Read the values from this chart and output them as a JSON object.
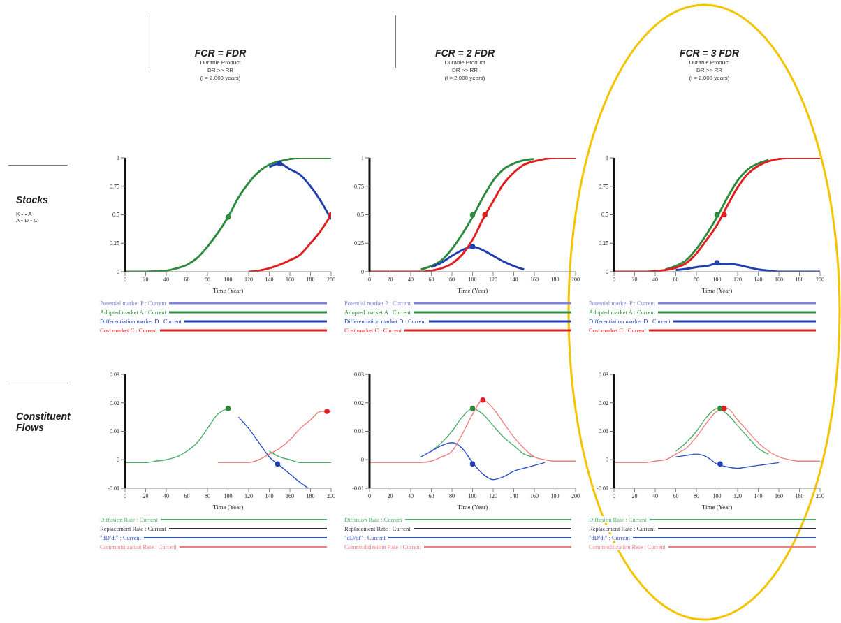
{
  "chart_data": [
    {
      "type": "line",
      "title": "FCR = FDR",
      "subtitle": "Durable Product\nDR >> RR\n(l = 2,000 years)",
      "xlabel": "Time (Year)",
      "annotations": [
        "Stocks",
        "K •    • A",
        "A • D • C"
      ],
      "x": [
        0,
        10,
        20,
        30,
        40,
        50,
        60,
        70,
        80,
        90,
        100,
        110,
        120,
        130,
        140,
        150,
        160,
        170,
        180,
        190,
        200
      ],
      "xlim": [
        0,
        200
      ],
      "xticks": [
        0,
        20,
        40,
        60,
        80,
        100,
        120,
        140,
        160,
        180,
        200
      ],
      "ylim": [
        0,
        1
      ],
      "yticks": [
        0,
        0.25,
        0.5,
        0.75,
        1
      ],
      "grid": false,
      "legend": "bottom",
      "series": [
        {
          "name": "Potential market P : Current",
          "color": "#8080e0",
          "values": [
            null,
            null,
            null,
            null,
            null,
            null,
            null,
            null,
            null,
            null,
            null,
            null,
            null,
            null,
            null,
            null,
            null,
            null,
            null,
            null,
            null
          ]
        },
        {
          "name": "Adopted market A : Current",
          "color": "#2e8b3e",
          "values": [
            0,
            0,
            0,
            0.005,
            0.01,
            0.03,
            0.06,
            0.12,
            0.22,
            0.34,
            0.48,
            0.65,
            0.78,
            0.88,
            0.94,
            0.97,
            0.99,
            1,
            1,
            1,
            1
          ]
        },
        {
          "name": "Differentiation market D : Current",
          "color": "#2040b0",
          "x": [
            140,
            150,
            160,
            170,
            180,
            190,
            200
          ],
          "values": [
            0.92,
            0.95,
            0.9,
            0.85,
            0.75,
            0.62,
            0.46
          ]
        },
        {
          "name": "Cost market C : Current",
          "color": "#e02020",
          "values": [
            null,
            null,
            null,
            null,
            null,
            null,
            null,
            null,
            null,
            null,
            null,
            null,
            0,
            0.01,
            0.03,
            0.06,
            0.1,
            0.15,
            0.25,
            0.36,
            0.5
          ]
        },
        {
          "type": "scatter",
          "color": "#2e8b3e",
          "x": [
            100
          ],
          "values": [
            0.48
          ]
        },
        {
          "type": "scatter",
          "color": "#2040b0",
          "x": [
            150
          ],
          "values": [
            0.95
          ]
        },
        {
          "type": "scatter",
          "color": "#e02020",
          "x": [
            200
          ],
          "values": [
            0.5
          ]
        }
      ]
    },
    {
      "type": "line",
      "title": "FCR = 2 FDR",
      "subtitle": "Durable Product\nDR >> RR\n(l = 2,000 years)",
      "xlabel": "Time (Year)",
      "x": [
        0,
        10,
        20,
        30,
        40,
        50,
        60,
        70,
        80,
        90,
        100,
        110,
        120,
        130,
        140,
        150,
        160,
        170,
        180,
        190,
        200
      ],
      "xlim": [
        0,
        200
      ],
      "xticks": [
        0,
        20,
        40,
        60,
        80,
        100,
        120,
        140,
        160,
        180,
        200
      ],
      "ylim": [
        0,
        1
      ],
      "yticks": [
        0,
        0.25,
        0.5,
        0.75,
        1
      ],
      "grid": false,
      "legend": "bottom",
      "series": [
        {
          "name": "Potential market P : Current",
          "color": "#8080e0",
          "values": [
            null,
            null,
            null,
            null,
            null,
            null,
            null,
            null,
            null,
            null,
            null,
            null,
            null,
            null,
            null,
            null,
            null,
            null,
            null,
            null,
            null
          ]
        },
        {
          "name": "Adopted market A : Current",
          "color": "#2e8b3e",
          "values": [
            null,
            null,
            null,
            null,
            null,
            0.02,
            0.05,
            0.1,
            0.2,
            0.33,
            0.48,
            0.65,
            0.8,
            0.9,
            0.95,
            0.98,
            0.99,
            null,
            null,
            null,
            null
          ]
        },
        {
          "name": "Differentiation market D : Current",
          "color": "#2040b0",
          "values": [
            null,
            null,
            null,
            null,
            null,
            null,
            0.04,
            0.08,
            0.14,
            0.19,
            0.22,
            0.19,
            0.14,
            0.09,
            0.05,
            0.02,
            null,
            null,
            null,
            null,
            null
          ]
        },
        {
          "name": "Cost market C : Current",
          "color": "#e02020",
          "values": [
            0,
            0,
            0,
            0,
            0,
            0,
            0.01,
            0.03,
            0.07,
            0.15,
            0.28,
            0.46,
            0.62,
            0.77,
            0.87,
            0.94,
            0.97,
            0.99,
            1,
            1,
            1
          ]
        },
        {
          "type": "scatter",
          "color": "#2e8b3e",
          "x": [
            100
          ],
          "values": [
            0.5
          ]
        },
        {
          "type": "scatter",
          "color": "#e02020",
          "x": [
            112
          ],
          "values": [
            0.5
          ]
        },
        {
          "type": "scatter",
          "color": "#2040b0",
          "x": [
            100
          ],
          "values": [
            0.22
          ]
        }
      ]
    },
    {
      "type": "line",
      "title": "FCR = 3 FDR",
      "subtitle": "Durable Product\nDR >> RR\n(l = 2,000 years)",
      "xlabel": "Time (Year)",
      "x": [
        0,
        10,
        20,
        30,
        40,
        50,
        60,
        70,
        80,
        90,
        100,
        110,
        120,
        130,
        140,
        150,
        160,
        170,
        180,
        190,
        200
      ],
      "xlim": [
        0,
        200
      ],
      "xticks": [
        0,
        20,
        40,
        60,
        80,
        100,
        120,
        140,
        160,
        180,
        200
      ],
      "ylim": [
        0,
        1
      ],
      "yticks": [
        0,
        0.25,
        0.5,
        0.75,
        1
      ],
      "grid": false,
      "legend": "bottom",
      "series": [
        {
          "name": "Potential market P : Current",
          "color": "#8080e0",
          "values": [
            null,
            null,
            null,
            null,
            null,
            null,
            null,
            null,
            null,
            null,
            null,
            null,
            null,
            null,
            null,
            null,
            null,
            null,
            null,
            null,
            null
          ]
        },
        {
          "name": "Adopted market A : Current",
          "color": "#2e8b3e",
          "values": [
            null,
            null,
            null,
            null,
            null,
            0.02,
            0.05,
            0.1,
            0.2,
            0.33,
            0.48,
            0.65,
            0.8,
            0.9,
            0.95,
            0.98,
            null,
            null,
            null,
            null,
            null
          ]
        },
        {
          "name": "Differentiation market D : Current",
          "color": "#2040b0",
          "values": [
            null,
            null,
            null,
            null,
            null,
            null,
            0.015,
            0.025,
            0.04,
            0.05,
            0.07,
            0.07,
            0.06,
            0.04,
            0.02,
            0.01,
            0,
            0,
            0,
            0,
            0
          ]
        },
        {
          "name": "Cost market C : Current",
          "color": "#e02020",
          "values": [
            0,
            0,
            0,
            0,
            0.005,
            0.015,
            0.035,
            0.075,
            0.16,
            0.28,
            0.41,
            0.58,
            0.74,
            0.86,
            0.93,
            0.97,
            0.99,
            1,
            1,
            1,
            1
          ]
        },
        {
          "type": "scatter",
          "color": "#2e8b3e",
          "x": [
            100
          ],
          "values": [
            0.5
          ]
        },
        {
          "type": "scatter",
          "color": "#e02020",
          "x": [
            107
          ],
          "values": [
            0.5
          ]
        },
        {
          "type": "scatter",
          "color": "#2040b0",
          "x": [
            100
          ],
          "values": [
            0.08
          ]
        }
      ]
    },
    {
      "type": "line",
      "xlabel": "Time (Year)",
      "annotations": [
        "Constituent Flows"
      ],
      "x": [
        0,
        10,
        20,
        30,
        40,
        50,
        60,
        70,
        80,
        90,
        100,
        110,
        120,
        130,
        140,
        150,
        160,
        170,
        180,
        190,
        200
      ],
      "xlim": [
        0,
        200
      ],
      "xticks": [
        0,
        20,
        40,
        60,
        80,
        100,
        120,
        140,
        160,
        180,
        200
      ],
      "ylim": [
        -0.01,
        0.03
      ],
      "yticks": [
        -0.01,
        0,
        0.01,
        0.02,
        0.03
      ],
      "grid": false,
      "legend": "bottom",
      "series": [
        {
          "name": "Diffusion Rate : Current",
          "color": "#4caf6a",
          "values": [
            -0.001,
            -0.001,
            -0.001,
            -0.0005,
            0,
            0.001,
            0.003,
            0.006,
            0.011,
            0.016,
            0.018,
            null,
            null,
            null,
            0.003,
            0.001,
            0,
            -0.001,
            -0.001,
            -0.001,
            -0.001
          ]
        },
        {
          "name": "Replacement Rate : Current",
          "color": "#303040",
          "values": [
            null,
            null,
            null,
            null,
            null,
            null,
            null,
            null,
            null,
            null,
            null,
            null,
            null,
            null,
            null,
            null,
            null,
            null,
            null,
            null,
            null
          ]
        },
        {
          "name": "\"dD/dt\" : Current",
          "color": "#3050c8",
          "x": [
            110,
            120,
            130,
            140,
            150,
            160,
            170,
            178
          ],
          "values": [
            0.015,
            0.011,
            0.006,
            0.001,
            -0.002,
            -0.005,
            -0.008,
            -0.01
          ]
        },
        {
          "name": "Commoditization Rate : Current",
          "color": "#f08080",
          "x": [
            90,
            100,
            110,
            120,
            130,
            140,
            150,
            160,
            170,
            180,
            190,
            200
          ],
          "values": [
            -0.001,
            -0.001,
            -0.001,
            -0.001,
            0,
            0.002,
            0.004,
            0.007,
            0.011,
            0.014,
            0.017,
            0.017
          ]
        },
        {
          "type": "scatter",
          "color": "#2e8b3e",
          "x": [
            100
          ],
          "values": [
            0.018
          ]
        },
        {
          "type": "scatter",
          "color": "#2040b0",
          "x": [
            148
          ],
          "values": [
            -0.0015
          ]
        },
        {
          "type": "scatter",
          "color": "#e02020",
          "x": [
            196
          ],
          "values": [
            0.017
          ]
        }
      ]
    },
    {
      "type": "line",
      "xlabel": "Time (Year)",
      "x": [
        0,
        10,
        20,
        30,
        40,
        50,
        60,
        70,
        80,
        90,
        100,
        110,
        120,
        130,
        140,
        150,
        160,
        170,
        180,
        190,
        200
      ],
      "xlim": [
        0,
        200
      ],
      "xticks": [
        0,
        20,
        40,
        60,
        80,
        100,
        120,
        140,
        160,
        180,
        200
      ],
      "ylim": [
        -0.01,
        0.03
      ],
      "yticks": [
        -0.01,
        0,
        0.01,
        0.02,
        0.03
      ],
      "grid": false,
      "legend": "bottom",
      "series": [
        {
          "name": "Diffusion Rate : Current",
          "color": "#4caf6a",
          "values": [
            null,
            null,
            null,
            null,
            null,
            null,
            0.003,
            0.006,
            0.01,
            0.015,
            0.018,
            0.016,
            0.012,
            0.008,
            0.005,
            0.002,
            0.001,
            null,
            null,
            null,
            null
          ]
        },
        {
          "name": "Replacement Rate : Current",
          "color": "#303040",
          "values": [
            null,
            null,
            null,
            null,
            null,
            null,
            null,
            null,
            null,
            null,
            null,
            null,
            null,
            null,
            null,
            null,
            null,
            null,
            null,
            null,
            null
          ]
        },
        {
          "name": "\"dD/dt\" : Current",
          "color": "#3050c8",
          "values": [
            null,
            null,
            null,
            null,
            null,
            0.001,
            0.003,
            0.005,
            0.006,
            0.004,
            -0.001,
            -0.005,
            -0.007,
            -0.006,
            -0.004,
            -0.003,
            -0.002,
            -0.001,
            null,
            null,
            null
          ]
        },
        {
          "name": "Commoditization Rate : Current",
          "color": "#f08080",
          "values": [
            -0.001,
            -0.001,
            -0.001,
            -0.001,
            -0.001,
            -0.001,
            -0.0005,
            0.001,
            0.003,
            0.009,
            0.016,
            0.021,
            0.018,
            0.013,
            0.008,
            0.004,
            0.001,
            0,
            -0.0005,
            -0.0005,
            -0.0005
          ]
        },
        {
          "type": "scatter",
          "color": "#2e8b3e",
          "x": [
            100
          ],
          "values": [
            0.018
          ]
        },
        {
          "type": "scatter",
          "color": "#e02020",
          "x": [
            110
          ],
          "values": [
            0.021
          ]
        },
        {
          "type": "scatter",
          "color": "#2040b0",
          "x": [
            100
          ],
          "values": [
            -0.0015
          ]
        }
      ]
    },
    {
      "type": "line",
      "xlabel": "Time (Year)",
      "x": [
        0,
        10,
        20,
        30,
        40,
        50,
        60,
        70,
        80,
        90,
        100,
        110,
        120,
        130,
        140,
        150,
        160,
        170,
        180,
        190,
        200
      ],
      "xlim": [
        0,
        200
      ],
      "xticks": [
        0,
        20,
        40,
        60,
        80,
        100,
        120,
        140,
        160,
        180,
        200
      ],
      "ylim": [
        -0.01,
        0.03
      ],
      "yticks": [
        -0.01,
        0,
        0.01,
        0.02,
        0.03
      ],
      "grid": false,
      "legend": "bottom",
      "series": [
        {
          "name": "Diffusion Rate : Current",
          "color": "#4caf6a",
          "values": [
            null,
            null,
            null,
            null,
            null,
            null,
            0.003,
            0.006,
            0.01,
            0.015,
            0.018,
            0.016,
            0.012,
            0.008,
            0.004,
            0.002,
            null,
            null,
            null,
            null,
            null
          ]
        },
        {
          "name": "Replacement Rate : Current",
          "color": "#303040",
          "values": [
            null,
            null,
            null,
            null,
            null,
            null,
            null,
            null,
            null,
            null,
            null,
            null,
            null,
            null,
            null,
            null,
            null,
            null,
            null,
            null,
            null
          ]
        },
        {
          "name": "\"dD/dt\" : Current",
          "color": "#3050c8",
          "values": [
            null,
            null,
            null,
            null,
            null,
            null,
            0.001,
            0.0015,
            0.002,
            0.001,
            -0.0015,
            -0.0025,
            -0.003,
            -0.0025,
            -0.002,
            -0.0015,
            -0.001,
            null,
            null,
            null,
            null
          ]
        },
        {
          "name": "Commoditization Rate : Current",
          "color": "#f08080",
          "values": [
            -0.001,
            -0.001,
            -0.001,
            -0.001,
            -0.0005,
            0,
            0.002,
            0.004,
            0.008,
            0.013,
            0.017,
            0.018,
            0.014,
            0.01,
            0.006,
            0.003,
            0.001,
            0,
            -0.0005,
            -0.0005,
            -0.0005
          ]
        },
        {
          "type": "scatter",
          "color": "#2e8b3e",
          "x": [
            103
          ],
          "values": [
            0.018
          ]
        },
        {
          "type": "scatter",
          "color": "#e02020",
          "x": [
            107
          ],
          "values": [
            0.018
          ]
        },
        {
          "type": "scatter",
          "color": "#2040b0",
          "x": [
            103
          ],
          "values": [
            -0.0015
          ]
        }
      ]
    }
  ]
}
